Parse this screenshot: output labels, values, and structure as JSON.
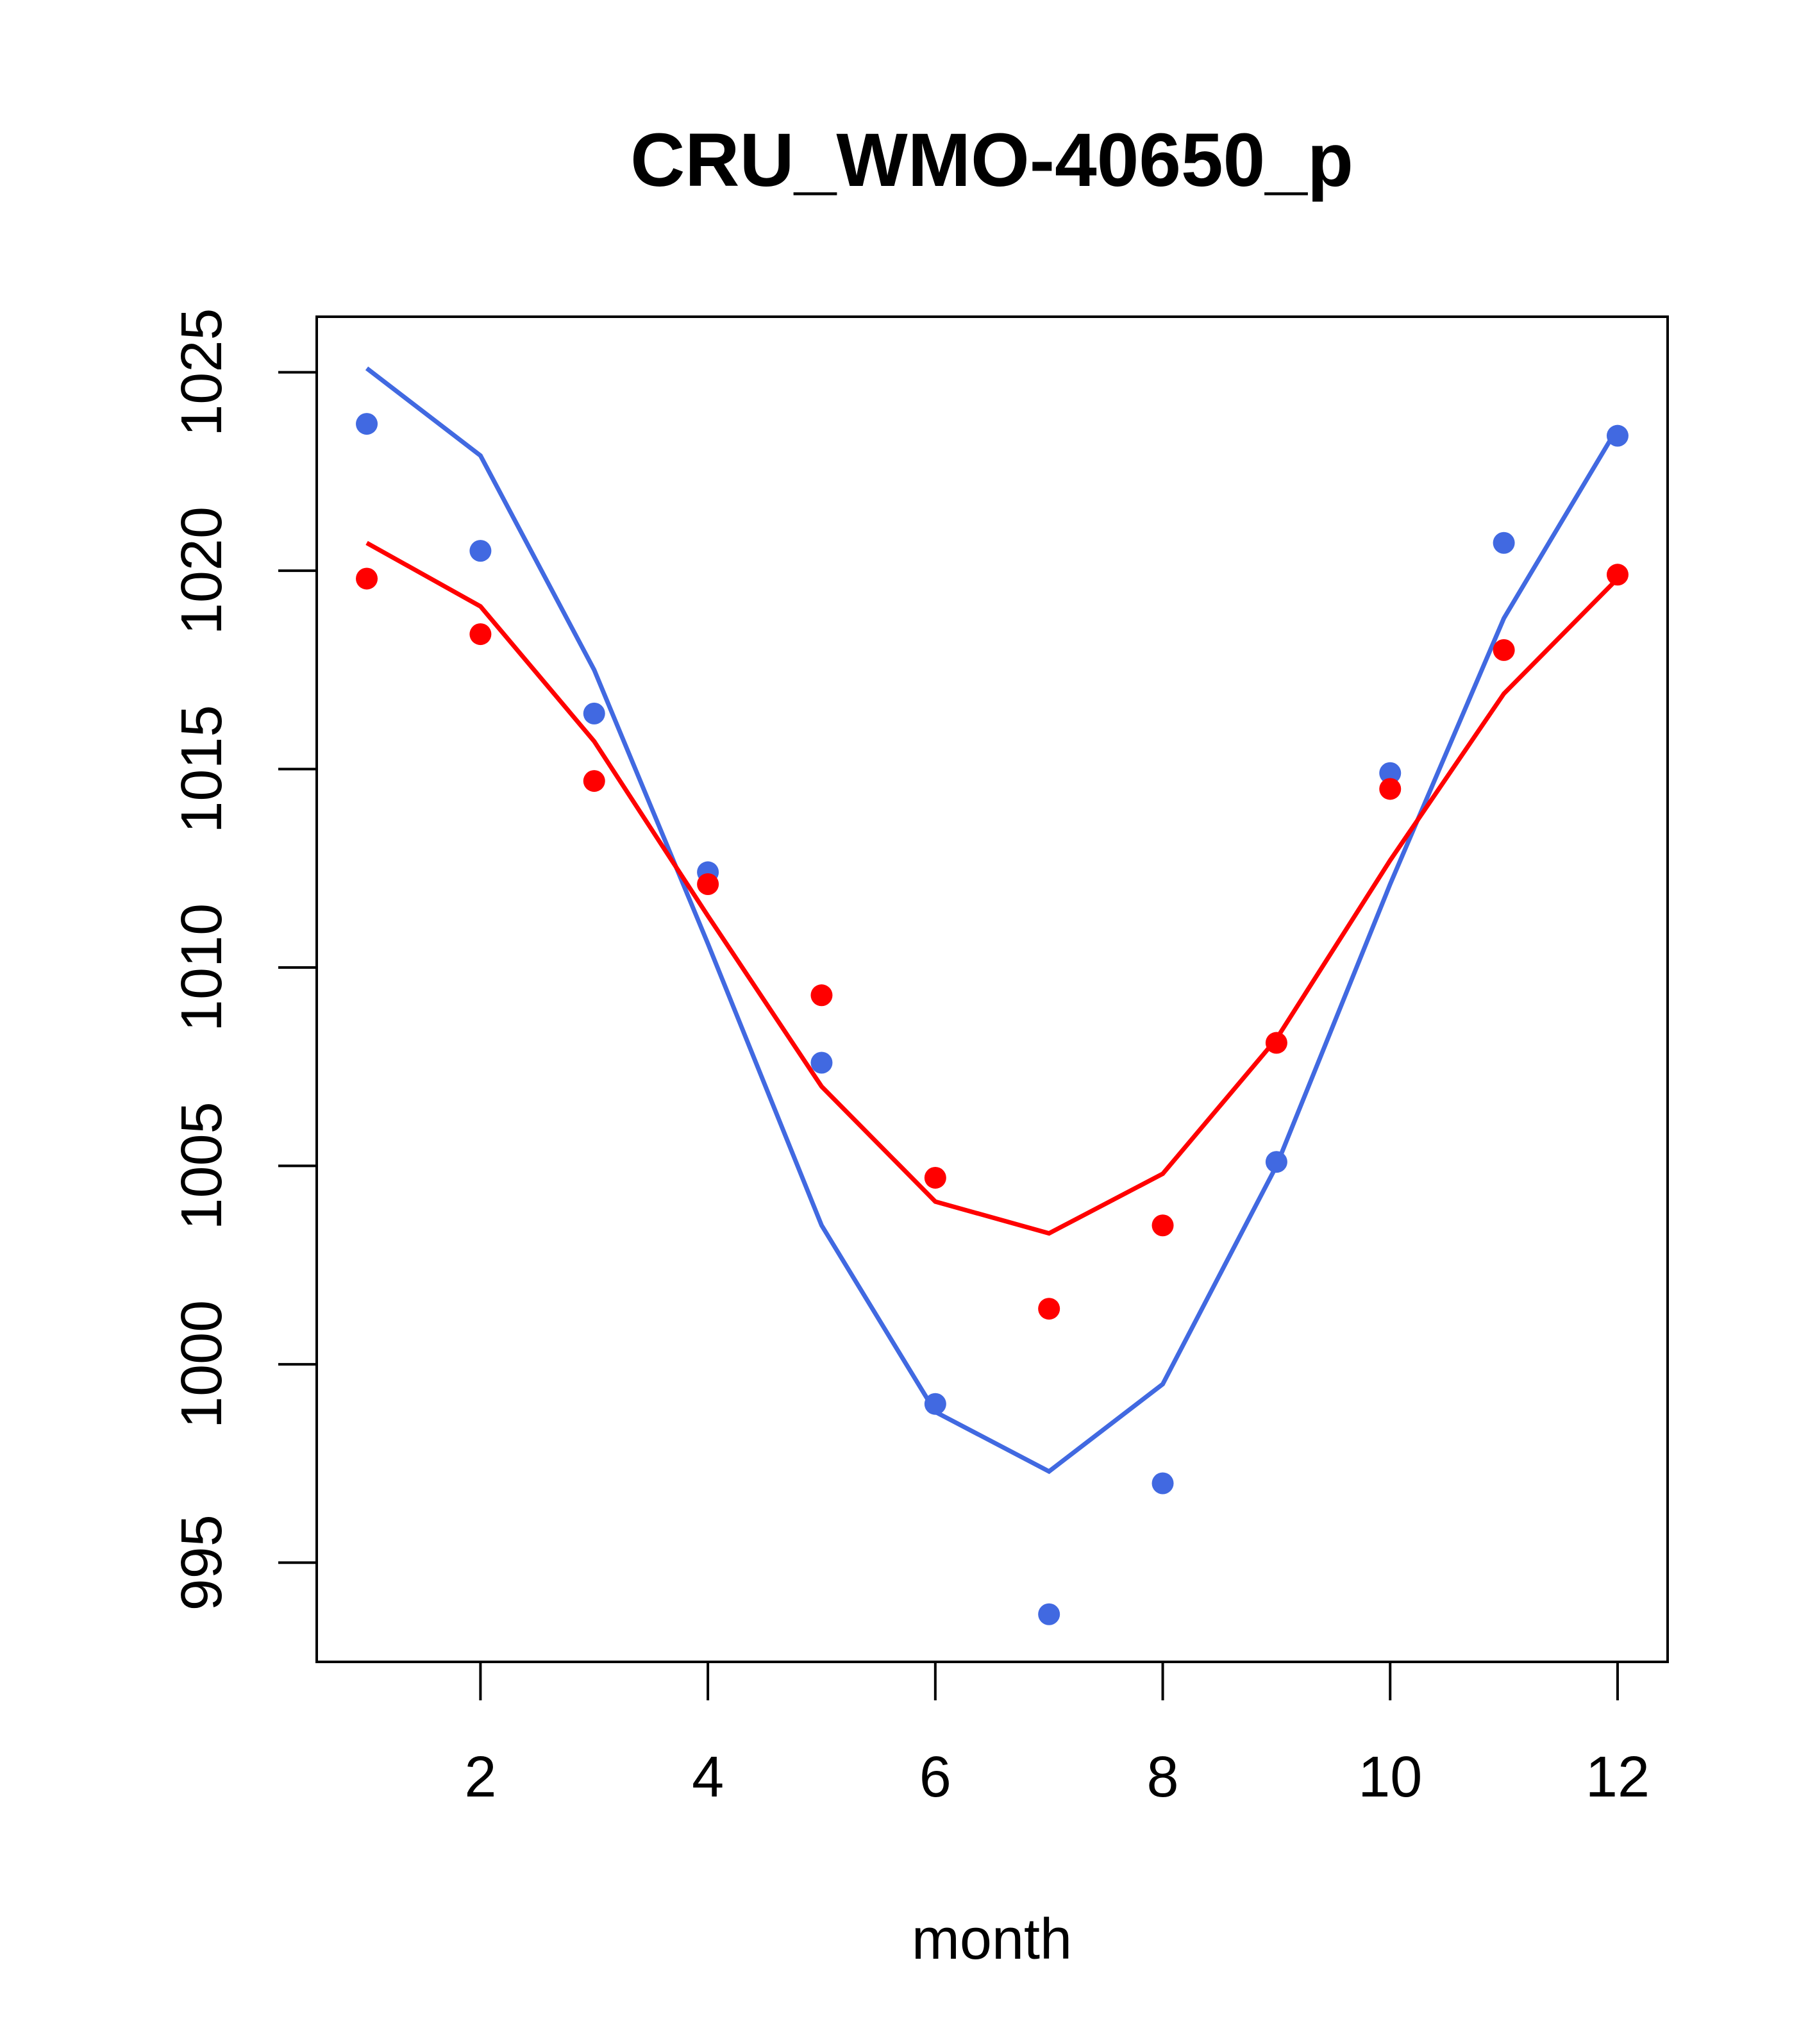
{
  "chart_data": {
    "type": "line",
    "title": "CRU_WMO-40650_p",
    "xlabel": "month",
    "ylabel": "",
    "xlim": [
      0.56,
      12.44
    ],
    "ylim": [
      992.5,
      1026.4
    ],
    "x_ticks": [
      2,
      4,
      6,
      8,
      10,
      12
    ],
    "y_ticks": [
      995,
      1000,
      1005,
      1010,
      1015,
      1020,
      1025
    ],
    "grid": false,
    "series": [
      {
        "name": "blue-line",
        "color": "#4169e1",
        "kind": "line",
        "x": [
          1,
          2,
          3,
          4,
          5,
          6,
          7,
          8,
          9,
          10,
          11,
          12
        ],
        "values": [
          1025.1,
          1022.9,
          1017.5,
          1010.6,
          1003.5,
          998.8,
          997.3,
          999.5,
          1005.0,
          1012.1,
          1018.8,
          1023.6
        ]
      },
      {
        "name": "red-line",
        "color": "#ff0000",
        "kind": "line",
        "x": [
          1,
          2,
          3,
          4,
          5,
          6,
          7,
          8,
          9,
          10,
          11,
          12
        ],
        "values": [
          1020.7,
          1019.1,
          1015.7,
          1011.3,
          1007.0,
          1004.1,
          1003.3,
          1004.8,
          1008.2,
          1012.7,
          1016.9,
          1019.8
        ]
      },
      {
        "name": "blue-points",
        "color": "#4169e1",
        "kind": "points",
        "x": [
          1,
          2,
          3,
          4,
          5,
          6,
          7,
          8,
          9,
          10,
          11,
          12
        ],
        "values": [
          1023.7,
          1020.5,
          1016.4,
          1012.4,
          1007.6,
          999.0,
          993.7,
          997.0,
          1005.1,
          1014.9,
          1020.7,
          1023.4
        ]
      },
      {
        "name": "red-points",
        "color": "#ff0000",
        "kind": "points",
        "x": [
          1,
          2,
          3,
          4,
          5,
          6,
          7,
          8,
          9,
          10,
          11,
          12
        ],
        "values": [
          1019.8,
          1018.4,
          1014.7,
          1012.1,
          1009.3,
          1004.7,
          1001.4,
          1003.5,
          1008.1,
          1014.5,
          1018.0,
          1019.9
        ]
      }
    ]
  }
}
